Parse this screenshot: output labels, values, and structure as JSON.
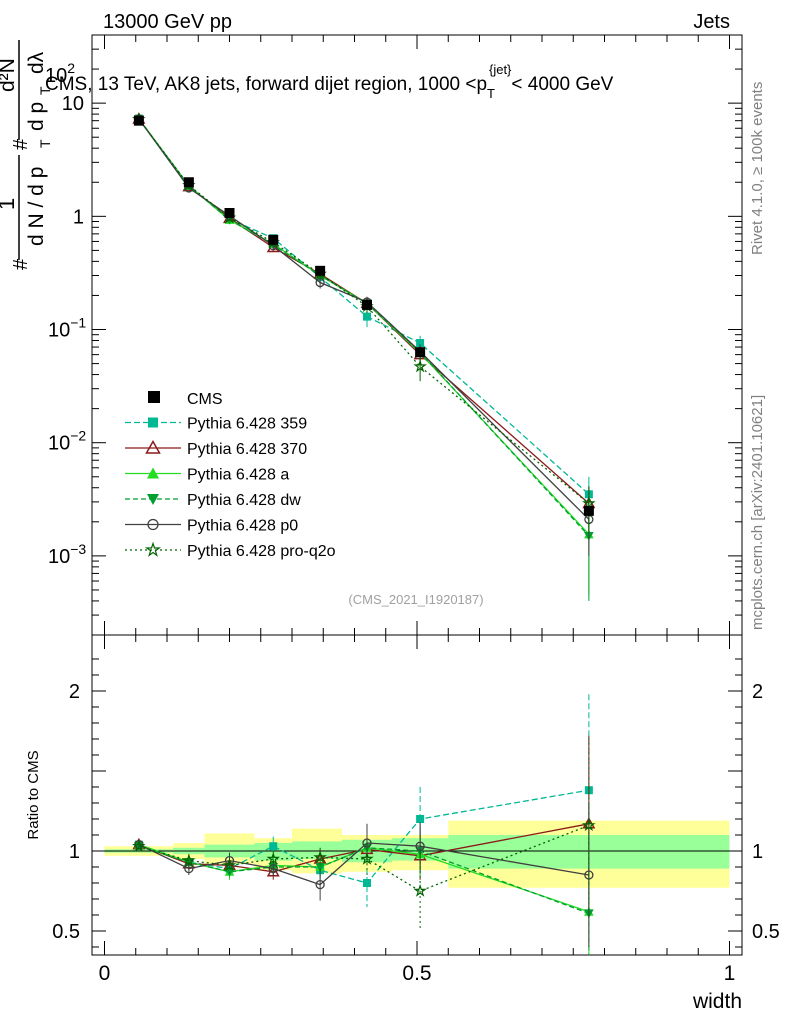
{
  "header": {
    "left": "13000 GeV pp",
    "right": "Jets"
  },
  "side_labels": {
    "rivet": "Rivet 4.1.0, ≥ 100k events",
    "mcplots": "mcplots.cern.ch [arXiv:2401.10621]"
  },
  "colors": {
    "cms": "#000000",
    "p359": "#00b894",
    "p370": "#8b1a1a",
    "pa": "#22dd22",
    "pdw": "#00a030",
    "p0": "#404040",
    "pq2o": "#006400",
    "band_outer": "#ffff99",
    "band_inner": "#99ff99"
  },
  "chart_data": [
    {
      "type": "line",
      "panel": "main",
      "title": "CMS, 13 TeV, AK8 jets, forward dijet region, 1000 < p_T^{jet} < 4000 GeV",
      "title_parts": {
        "prefix": "CMS, 13 TeV, AK8 jets, forward dijet region, 1000 <p",
        "sub": "T",
        "sup": "{jet}",
        "suffix": "< 4000 GeV"
      },
      "xlabel": "width",
      "ylabel": "1 / (dN / dp_T)  d²N / (dp_T dλ)",
      "ylabel_parts": {
        "frac1": "1",
        "den1": "d N / d p",
        "sub": "T",
        "num2": "d²N",
        "den2": "d p",
        "den2b": "dλ",
        "hash": "#"
      },
      "yscale": "log",
      "ylim": [
        0.0002,
        40
      ],
      "xlim": [
        -0.02,
        1.02
      ],
      "watermark": "(CMS_2021_I1920187)",
      "ytick_labels": [
        {
          "value": 0.001,
          "base": "10",
          "exp": "−3"
        },
        {
          "value": 0.01,
          "base": "10",
          "exp": "−2"
        },
        {
          "value": 0.1,
          "base": "10",
          "exp": "−1"
        },
        {
          "value": 1,
          "base": "1",
          "exp": ""
        },
        {
          "value": 10,
          "base": "10",
          "exp": ""
        }
      ],
      "ytop_label": {
        "base": "10",
        "exp": "2"
      },
      "x": [
        0.055,
        0.135,
        0.2,
        0.27,
        0.345,
        0.42,
        0.505,
        0.775
      ],
      "cms": {
        "name": "CMS",
        "values": [
          7.0,
          2.0,
          1.07,
          0.62,
          0.33,
          0.165,
          0.063,
          0.0025
        ],
        "bin_edges": [
          0.0,
          0.11,
          0.16,
          0.24,
          0.3,
          0.38,
          0.46,
          0.55,
          1.0
        ]
      },
      "series": [
        {
          "key": "p359",
          "name": "Pythia 6.428 359",
          "dash": "6,3",
          "marker": "square",
          "values": [
            7.3,
            1.85,
            0.95,
            0.64,
            0.29,
            0.13,
            0.076,
            0.0035
          ],
          "err": [
            0.1,
            0.05,
            0.04,
            0.05,
            0.03,
            0.025,
            0.012,
            0.0015
          ]
        },
        {
          "key": "p370",
          "name": "Pythia 6.428 370",
          "dash": "",
          "marker": "triangle-open",
          "values": [
            7.25,
            1.83,
            0.96,
            0.53,
            0.31,
            0.17,
            0.06,
            0.0029
          ],
          "err": [
            0.1,
            0.05,
            0.04,
            0.04,
            0.03,
            0.02,
            0.01,
            0.0012
          ]
        },
        {
          "key": "pa",
          "name": "Pythia 6.428 a",
          "dash": "",
          "marker": "triangle",
          "values": [
            7.25,
            1.86,
            0.93,
            0.57,
            0.3,
            0.17,
            0.062,
            0.00155
          ],
          "err": [
            0.1,
            0.05,
            0.04,
            0.04,
            0.03,
            0.02,
            0.01,
            0.0011
          ]
        },
        {
          "key": "pdw",
          "name": "Pythia 6.428 dw",
          "dash": "5,3",
          "marker": "triangle-down",
          "values": [
            7.2,
            1.86,
            0.93,
            0.56,
            0.3,
            0.17,
            0.063,
            0.0015
          ],
          "err": [
            0.1,
            0.05,
            0.04,
            0.04,
            0.03,
            0.02,
            0.01,
            0.0011
          ]
        },
        {
          "key": "p0",
          "name": "Pythia 6.428 p0",
          "dash": "",
          "marker": "circle-open",
          "values": [
            7.25,
            1.78,
            1.01,
            0.55,
            0.26,
            0.175,
            0.064,
            0.0021
          ],
          "err": [
            0.1,
            0.05,
            0.04,
            0.04,
            0.03,
            0.02,
            0.01,
            0.0011
          ]
        },
        {
          "key": "pq2o",
          "name": "Pythia 6.428 pro-q2o",
          "dash": "2,3",
          "marker": "star",
          "values": [
            7.2,
            1.88,
            0.97,
            0.59,
            0.31,
            0.16,
            0.047,
            0.0029
          ],
          "err": [
            0.1,
            0.05,
            0.04,
            0.04,
            0.03,
            0.02,
            0.012,
            0.0012
          ]
        }
      ]
    },
    {
      "type": "line",
      "panel": "ratio",
      "ylabel": "Ratio to CMS",
      "xlabel": "width",
      "ylim": [
        0.35,
        2.35
      ],
      "xlim": [
        -0.02,
        1.02
      ],
      "ytick_labels": [
        0.5,
        1,
        2
      ],
      "xtick_labels": [
        "0",
        "0.5",
        "1"
      ],
      "xtick_values": [
        0,
        0.5,
        1
      ],
      "band_inner": {
        "edges": [
          0.0,
          0.11,
          0.16,
          0.24,
          0.3,
          0.38,
          0.46,
          0.55,
          1.0
        ],
        "lo": [
          0.99,
          0.98,
          0.96,
          0.94,
          0.95,
          0.93,
          0.94,
          0.89
        ],
        "hi": [
          1.01,
          1.02,
          1.04,
          1.05,
          1.06,
          1.07,
          1.08,
          1.1
        ]
      },
      "band_outer": {
        "edges": [
          0.0,
          0.11,
          0.16,
          0.24,
          0.3,
          0.38,
          0.46,
          0.55,
          1.0
        ],
        "lo": [
          0.97,
          0.95,
          0.92,
          0.88,
          0.86,
          0.87,
          0.88,
          0.77
        ],
        "hi": [
          1.03,
          1.05,
          1.11,
          1.08,
          1.14,
          1.1,
          1.1,
          1.19
        ]
      },
      "x": [
        0.055,
        0.135,
        0.2,
        0.27,
        0.345,
        0.42,
        0.505,
        0.775
      ],
      "series": [
        {
          "key": "p359",
          "values": [
            1.04,
            0.93,
            0.89,
            1.03,
            0.88,
            0.8,
            1.2,
            1.38
          ],
          "err": [
            0.02,
            0.04,
            0.05,
            0.06,
            0.08,
            0.15,
            0.2,
            0.6
          ]
        },
        {
          "key": "p370",
          "values": [
            1.04,
            0.92,
            0.91,
            0.87,
            0.95,
            1.01,
            0.97,
            1.17
          ],
          "err": [
            0.02,
            0.04,
            0.05,
            0.05,
            0.06,
            0.1,
            0.15,
            0.55
          ]
        },
        {
          "key": "pa",
          "values": [
            1.04,
            0.93,
            0.87,
            0.91,
            0.9,
            1.02,
            0.98,
            0.62
          ],
          "err": [
            0.02,
            0.04,
            0.05,
            0.05,
            0.06,
            0.1,
            0.15,
            0.45
          ]
        },
        {
          "key": "pdw",
          "values": [
            1.03,
            0.93,
            0.87,
            0.9,
            0.9,
            1.02,
            1.0,
            0.61
          ],
          "err": [
            0.02,
            0.04,
            0.05,
            0.05,
            0.06,
            0.1,
            0.15,
            0.45
          ]
        },
        {
          "key": "p0",
          "values": [
            1.04,
            0.89,
            0.94,
            0.89,
            0.79,
            1.05,
            1.03,
            0.85
          ],
          "err": [
            0.02,
            0.04,
            0.05,
            0.05,
            0.1,
            0.12,
            0.15,
            0.45
          ]
        },
        {
          "key": "pq2o",
          "values": [
            1.03,
            0.94,
            0.91,
            0.95,
            0.96,
            0.95,
            0.75,
            1.16
          ],
          "err": [
            0.02,
            0.04,
            0.05,
            0.05,
            0.06,
            0.1,
            0.25,
            0.55
          ]
        }
      ]
    }
  ]
}
